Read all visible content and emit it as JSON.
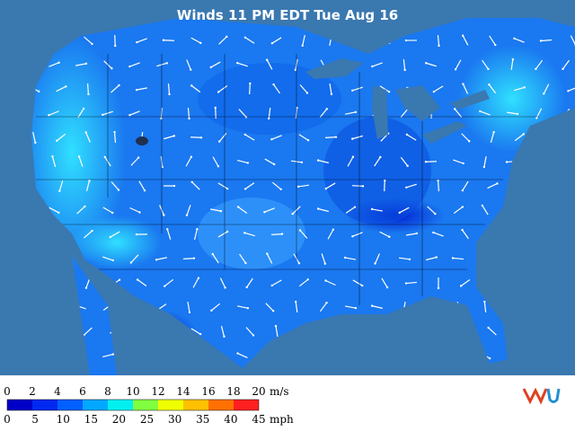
{
  "header": {
    "title": "Winds 11 PM EDT Tue Aug 16"
  },
  "legend": {
    "ms": {
      "unit": "m/s",
      "ticks": [
        0,
        2,
        4,
        6,
        8,
        10,
        12,
        14,
        16,
        18,
        20
      ]
    },
    "mph": {
      "unit": "mph",
      "ticks": [
        0,
        5,
        10,
        15,
        20,
        25,
        30,
        35,
        40,
        45
      ]
    }
  }
}
